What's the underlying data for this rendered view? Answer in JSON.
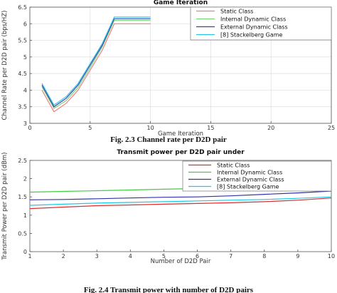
{
  "figure1_caption": "Fig. 2.3 Channel rate per D2D pair",
  "figure2_caption": "Fig. 2.4 Transmit power with number of D2D pairs",
  "chart_data": [
    {
      "type": "line",
      "title": "Game Iteration",
      "xlabel": "Game Iteration",
      "ylabel": "Channel Rate per D2D pair (bps/HZ)",
      "xlim": [
        0,
        25
      ],
      "ylim": [
        3,
        6.5
      ],
      "xticks": [
        0,
        5,
        10,
        15,
        20,
        25
      ],
      "yticks": [
        3,
        3.5,
        4,
        4.5,
        5,
        5.5,
        6,
        6.5
      ],
      "grid": true,
      "legend_position": "top-right",
      "series": [
        {
          "name": "Static Class",
          "color": "#f08080",
          "x": [
            1,
            2,
            3,
            4,
            5,
            6,
            7,
            10
          ],
          "y": [
            4.0,
            3.35,
            3.6,
            4.0,
            4.6,
            5.2,
            6.0,
            6.0
          ]
        },
        {
          "name": "Internal Dynamic Class",
          "color": "#7cd67c",
          "x": [
            1,
            2,
            3,
            4,
            5,
            6,
            7,
            10
          ],
          "y": [
            4.1,
            3.45,
            3.68,
            4.08,
            4.68,
            5.3,
            6.1,
            6.1
          ]
        },
        {
          "name": "External Dynamic Class",
          "color": "#4040a8",
          "x": [
            1,
            2,
            3,
            4,
            5,
            6,
            7,
            10
          ],
          "y": [
            4.15,
            3.5,
            3.75,
            4.15,
            4.75,
            5.35,
            6.15,
            6.15
          ]
        },
        {
          "name": "[8] Stackelberg Game",
          "color": "#2ec4e6",
          "x": [
            1,
            2,
            3,
            4,
            5,
            6,
            7,
            10
          ],
          "y": [
            4.2,
            3.55,
            3.8,
            4.2,
            4.8,
            5.4,
            6.2,
            6.2
          ]
        }
      ]
    },
    {
      "type": "line",
      "title": "Transmit power per D2D pair under",
      "xlabel": "Number of D2D Pair",
      "ylabel": "Transmit Power per D2D pair (dBm)",
      "xlim": [
        1,
        10
      ],
      "ylim": [
        0,
        2.5
      ],
      "xticks": [
        1,
        2,
        3,
        4,
        5,
        6,
        7,
        8,
        9,
        10
      ],
      "yticks": [
        0,
        0.5,
        1,
        1.5,
        2,
        2.5
      ],
      "grid": false,
      "legend_position": "top-right",
      "series": [
        {
          "name": "Static Class",
          "color": "#d93030",
          "x": [
            1,
            2,
            3,
            4,
            5,
            6,
            7,
            8,
            9,
            10
          ],
          "y": [
            1.18,
            1.22,
            1.26,
            1.28,
            1.3,
            1.32,
            1.34,
            1.37,
            1.41,
            1.47
          ]
        },
        {
          "name": "Internal Dynamic Class",
          "color": "#44cc44",
          "x": [
            1,
            2,
            3,
            4,
            5,
            6,
            7,
            8,
            9,
            10
          ],
          "y": [
            1.63,
            1.65,
            1.67,
            1.69,
            1.71,
            1.73,
            1.75,
            1.78,
            1.81,
            1.84
          ]
        },
        {
          "name": "External Dynamic Class",
          "color": "#3333aa",
          "x": [
            1,
            2,
            3,
            4,
            5,
            6,
            7,
            8,
            9,
            10
          ],
          "y": [
            1.42,
            1.43,
            1.45,
            1.47,
            1.49,
            1.5,
            1.53,
            1.57,
            1.61,
            1.66
          ]
        },
        {
          "name": "[8] Stackelberg Game",
          "color": "#20c8e8",
          "x": [
            1,
            2,
            3,
            4,
            5,
            6,
            7,
            8,
            9,
            10
          ],
          "y": [
            1.27,
            1.3,
            1.33,
            1.35,
            1.37,
            1.39,
            1.41,
            1.43,
            1.46,
            1.5
          ]
        }
      ]
    }
  ]
}
